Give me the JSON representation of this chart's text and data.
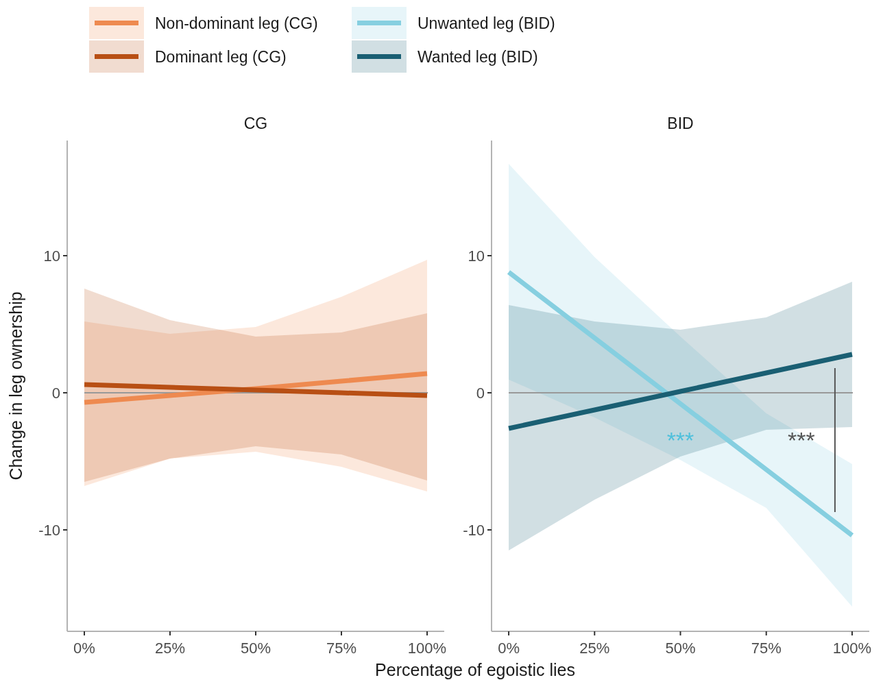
{
  "chart_data": [
    {
      "type": "line",
      "title": "CG",
      "xlabel": "Percentage of egoistic lies",
      "ylabel": "Change in leg ownership",
      "legend": "top left",
      "xlim": [
        -5,
        105
      ],
      "xticks": [
        {
          "value": 0,
          "label": "0%"
        },
        {
          "value": 25,
          "label": "25%"
        },
        {
          "value": 50,
          "label": "50%"
        },
        {
          "value": 75,
          "label": "75%"
        },
        {
          "value": 100,
          "label": "100%"
        }
      ],
      "ylim": [
        -17.4,
        18.4
      ],
      "yticks": [
        -10,
        0,
        10
      ],
      "grid": false,
      "ref_lines": [
        {
          "axis": "y",
          "value": 0,
          "color": "#999999"
        }
      ],
      "series": [
        {
          "name": "Non-dominant leg (CG)",
          "color": "#ee8a50",
          "x": [
            0,
            25,
            50,
            75,
            100
          ],
          "values": [
            -0.7,
            -0.2,
            0.3,
            0.85,
            1.4
          ],
          "lower": [
            -6.8,
            -4.8,
            -4.3,
            -5.4,
            -7.2
          ],
          "upper": [
            5.2,
            4.3,
            4.8,
            7.0,
            9.7
          ]
        },
        {
          "name": "Dominant leg (CG)",
          "color": "#b84f14",
          "x": [
            0,
            25,
            50,
            75,
            100
          ],
          "values": [
            0.6,
            0.4,
            0.2,
            0.0,
            -0.2
          ],
          "lower": [
            -6.5,
            -4.8,
            -3.9,
            -4.5,
            -6.4
          ],
          "upper": [
            7.6,
            5.3,
            4.1,
            4.4,
            5.8
          ]
        }
      ]
    },
    {
      "type": "line",
      "title": "BID",
      "legend": "top left",
      "xlim": [
        -5,
        105
      ],
      "xticks": [
        {
          "value": 0,
          "label": "0%"
        },
        {
          "value": 25,
          "label": "25%"
        },
        {
          "value": 50,
          "label": "50%"
        },
        {
          "value": 75,
          "label": "75%"
        },
        {
          "value": 100,
          "label": "100%"
        }
      ],
      "ylim": [
        -17.4,
        18.4
      ],
      "yticks": [
        -10,
        0,
        10
      ],
      "grid": false,
      "ref_lines": [
        {
          "axis": "y",
          "value": 0,
          "color": "#999999"
        }
      ],
      "annotations": [
        "***",
        "***"
      ],
      "series": [
        {
          "name": "Unwanted leg (BID)",
          "color": "#86cfe0",
          "x": [
            0,
            25,
            50,
            75,
            100
          ],
          "values": [
            8.8,
            4.0,
            -0.8,
            -5.6,
            -10.4
          ],
          "lower": [
            0.96,
            -1.8,
            -4.9,
            -8.4,
            -15.6
          ],
          "upper": [
            16.7,
            9.9,
            4.1,
            -1.5,
            -5.2
          ]
        },
        {
          "name": "Wanted leg (BID)",
          "color": "#1a5f73",
          "x": [
            0,
            25,
            50,
            75,
            100
          ],
          "values": [
            -2.6,
            -1.25,
            0.1,
            1.45,
            2.8
          ],
          "lower": [
            -11.5,
            -7.8,
            -4.65,
            -2.7,
            -2.5
          ],
          "upper": [
            6.4,
            5.2,
            4.6,
            5.5,
            8.1
          ]
        }
      ]
    }
  ]
}
